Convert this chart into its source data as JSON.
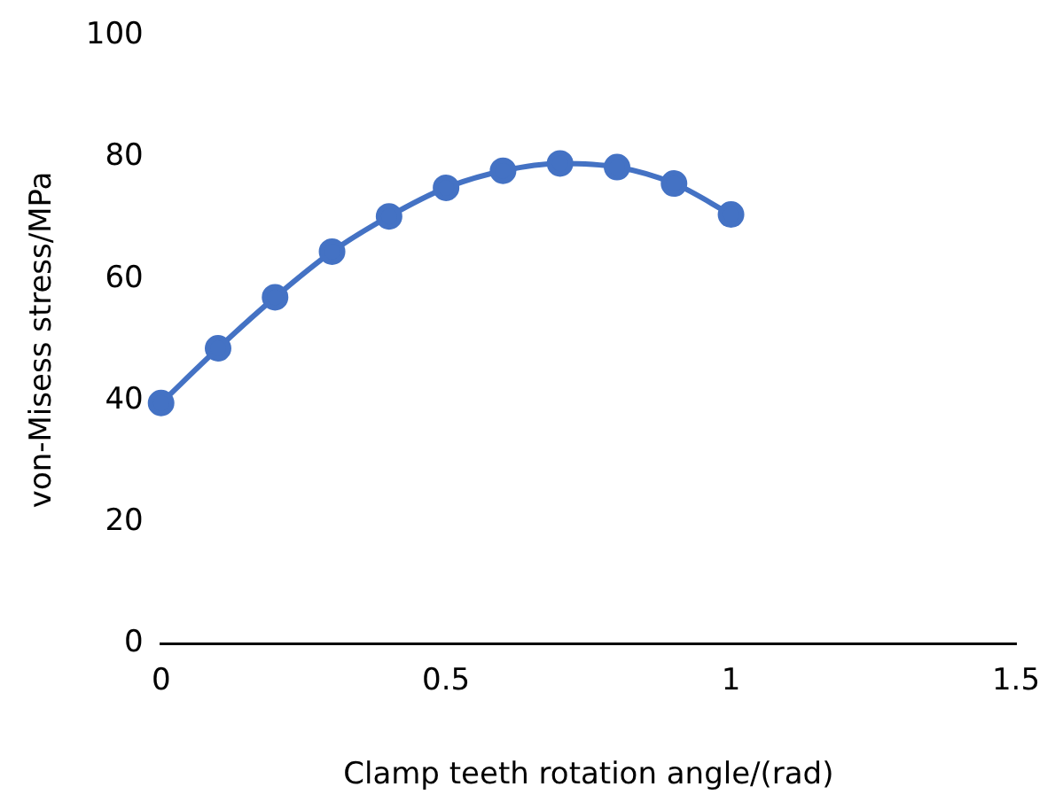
{
  "chart_data": {
    "type": "line",
    "xlabel": "Clamp teeth rotation angle/(rad)",
    "ylabel": "von-Misess stress/MPa",
    "x": [
      0,
      0.1,
      0.2,
      0.3,
      0.4,
      0.5,
      0.6,
      0.7,
      0.8,
      0.9,
      1.0
    ],
    "series": [
      {
        "color": "#4472c4",
        "values": [
          39.6,
          48.6,
          57,
          64.5,
          70.3,
          75,
          77.8,
          79,
          78.4,
          75.7,
          70.6
        ]
      }
    ],
    "xlim": [
      0,
      1.5
    ],
    "xticks": [
      0,
      0.5,
      1,
      1.5
    ],
    "ylim": [
      0,
      100
    ],
    "yticks": [
      0,
      20,
      40,
      60,
      80,
      100
    ],
    "grid": false,
    "legend": false,
    "marker": "circle",
    "line_style": "solid"
  }
}
